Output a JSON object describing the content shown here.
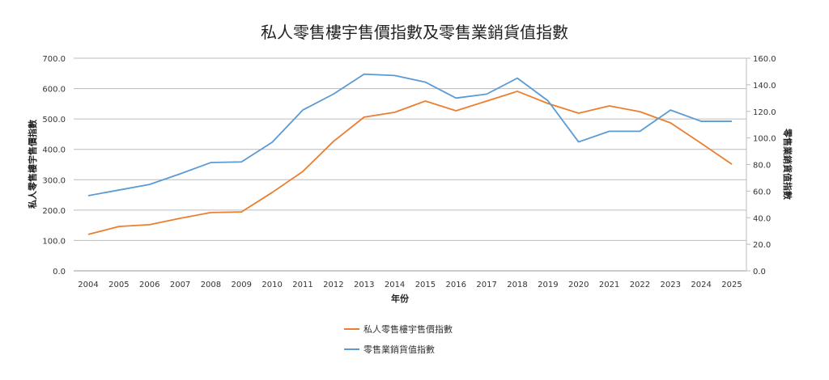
{
  "chart_data": {
    "type": "line",
    "title": "私人零售樓宇售價指數及零售業銷貨值指數",
    "xlabel": "年份",
    "ylabel": "私人零售樓宇售價指數",
    "y2label": "零售業銷貨值指數",
    "ylim": [
      0,
      700
    ],
    "y2lim": [
      0,
      160
    ],
    "yticks": [
      "0.0",
      "100.0",
      "200.0",
      "300.0",
      "400.0",
      "500.0",
      "600.0",
      "700.0"
    ],
    "y2ticks": [
      "0.0",
      "20.0",
      "40.0",
      "60.0",
      "80.0",
      "100.0",
      "120.0",
      "140.0",
      "160.0"
    ],
    "grid": true,
    "legend_position": "bottom",
    "categories": [
      "2004",
      "2005",
      "2006",
      "2007",
      "2008",
      "2009",
      "2010",
      "2011",
      "2012",
      "2013",
      "2014",
      "2015",
      "2016",
      "2017",
      "2018",
      "2019",
      "2020",
      "2021",
      "2022",
      "2023",
      "2024",
      "2025"
    ],
    "series": [
      {
        "name": "私人零售樓宇售價指數",
        "axis": "left",
        "color": "#ED7D31",
        "values": [
          120,
          146,
          152,
          173,
          192,
          194,
          258,
          327,
          426,
          506,
          522,
          559,
          527,
          559,
          591,
          551,
          519,
          543,
          524,
          487,
          420,
          351
        ]
      },
      {
        "name": "零售業銷貨值指數",
        "axis": "right",
        "color": "#5B9BD5",
        "values": [
          56.6,
          60.8,
          65,
          73,
          81.5,
          82,
          96.7,
          121,
          133,
          148,
          147,
          142,
          130,
          133,
          145,
          128,
          97,
          105,
          105,
          121,
          112.5,
          112.5
        ]
      }
    ]
  }
}
